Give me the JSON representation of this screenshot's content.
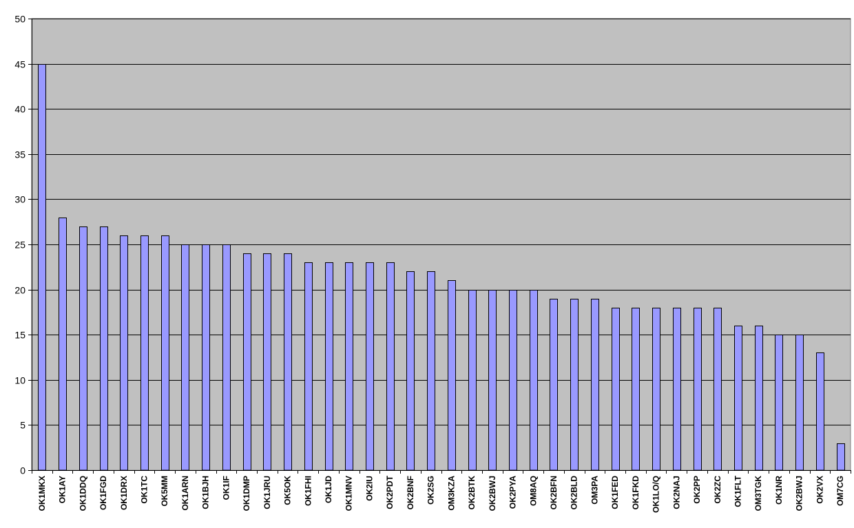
{
  "chart_data": {
    "type": "bar",
    "title": "",
    "xlabel": "",
    "ylabel": "",
    "ylim": [
      0,
      50
    ],
    "yticks": [
      0,
      5,
      10,
      15,
      20,
      25,
      30,
      35,
      40,
      45,
      50
    ],
    "grid": true,
    "legend": "none",
    "categories": [
      "OK1MKX",
      "OK1AY",
      "OK1DDQ",
      "OK1FGD",
      "OK1DRX",
      "OK1TC",
      "OK5MM",
      "OK1ARN",
      "OK1BJH",
      "OK1IF",
      "OK1DMP",
      "OK1JRU",
      "OK5OK",
      "OK1FHI",
      "OK1JD",
      "OK1MNV",
      "OK2IU",
      "OK2PDT",
      "OK2BNF",
      "OK2SG",
      "OM3KZA",
      "OK2BTK",
      "OK2BWJ",
      "OK2PYA",
      "OM8AQ",
      "OK2BFN",
      "OK2BLD",
      "OM3PA",
      "OK1FED",
      "OK1FKD",
      "OK1LO/Q",
      "OK2NAJ",
      "OK2PP",
      "OK2ZC",
      "OK1FLT",
      "OM3TGK",
      "OK1NR",
      "OK2BWJ",
      "OK2VX",
      "OM7CG"
    ],
    "values": [
      45,
      28,
      27,
      27,
      26,
      26,
      26,
      25,
      25,
      25,
      24,
      24,
      24,
      23,
      23,
      23,
      23,
      23,
      22,
      22,
      21,
      20,
      20,
      20,
      20,
      19,
      19,
      19,
      18,
      18,
      18,
      18,
      18,
      18,
      16,
      16,
      15,
      15,
      13,
      3
    ]
  },
  "colors": {
    "plot_background": "#c0c0c0",
    "bar_fill": "#9999ff",
    "bar_stroke": "#000000",
    "gridline": "#000000"
  }
}
